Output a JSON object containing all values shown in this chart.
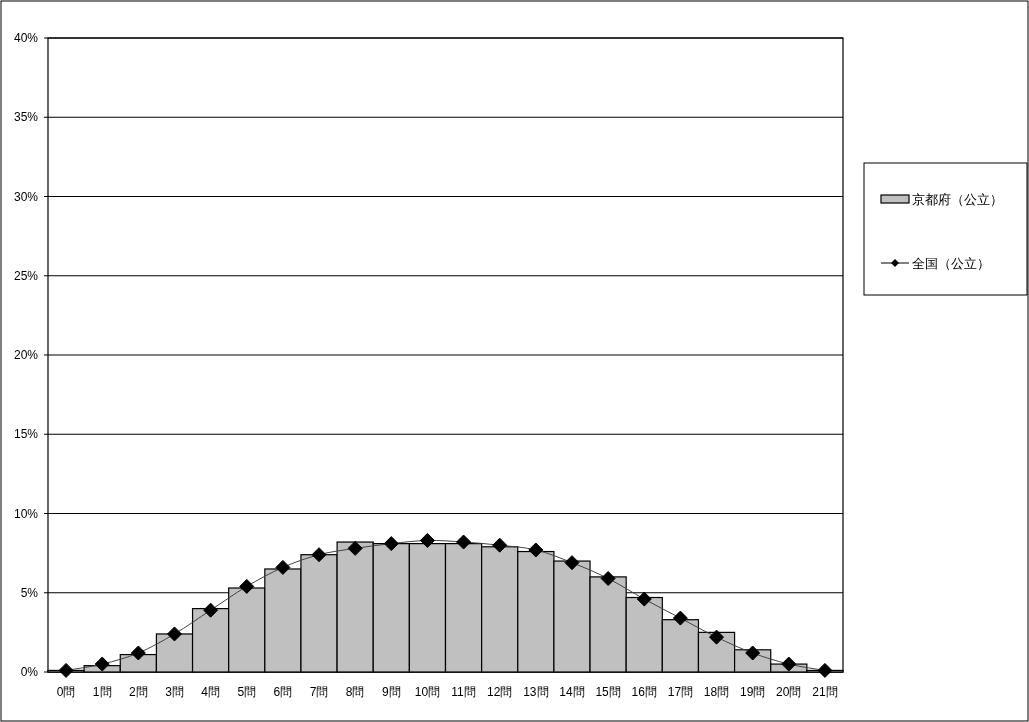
{
  "chart_data": {
    "type": "bar",
    "categories": [
      "0問",
      "1問",
      "2問",
      "3問",
      "4問",
      "5問",
      "6問",
      "7問",
      "8問",
      "9問",
      "10問",
      "11問",
      "12問",
      "13問",
      "14問",
      "15問",
      "16問",
      "17問",
      "18問",
      "19問",
      "20問",
      "21問"
    ],
    "series": [
      {
        "name": "京都府（公立）",
        "color": "#c0c0c0",
        "values": [
          0.1,
          0.4,
          1.1,
          2.4,
          4.0,
          5.3,
          6.5,
          7.4,
          8.2,
          8.1,
          8.1,
          8.1,
          7.9,
          7.6,
          7.0,
          6.0,
          4.7,
          3.3,
          2.5,
          1.4,
          0.5,
          0.1
        ]
      },
      {
        "name": "全国（公立）",
        "type": "line",
        "color": "#000000",
        "values": [
          0.1,
          0.5,
          1.2,
          2.4,
          3.9,
          5.4,
          6.6,
          7.4,
          7.8,
          8.1,
          8.3,
          8.2,
          8.0,
          7.7,
          6.9,
          5.9,
          4.6,
          3.4,
          2.2,
          1.2,
          0.5,
          0.1
        ]
      }
    ],
    "ylim": [
      0,
      40
    ],
    "yticks": [
      {
        "value": 0,
        "label": "0%"
      },
      {
        "value": 5,
        "label": "5%"
      },
      {
        "value": 10,
        "label": "10%"
      },
      {
        "value": 15,
        "label": "15%"
      },
      {
        "value": 20,
        "label": "20%"
      },
      {
        "value": 25,
        "label": "25%"
      },
      {
        "value": 30,
        "label": "30%"
      },
      {
        "value": 35,
        "label": "35%"
      },
      {
        "value": 40,
        "label": "40%"
      }
    ],
    "grid": "y",
    "legend": "right",
    "marker": "diamond",
    "line_style": "solid"
  }
}
